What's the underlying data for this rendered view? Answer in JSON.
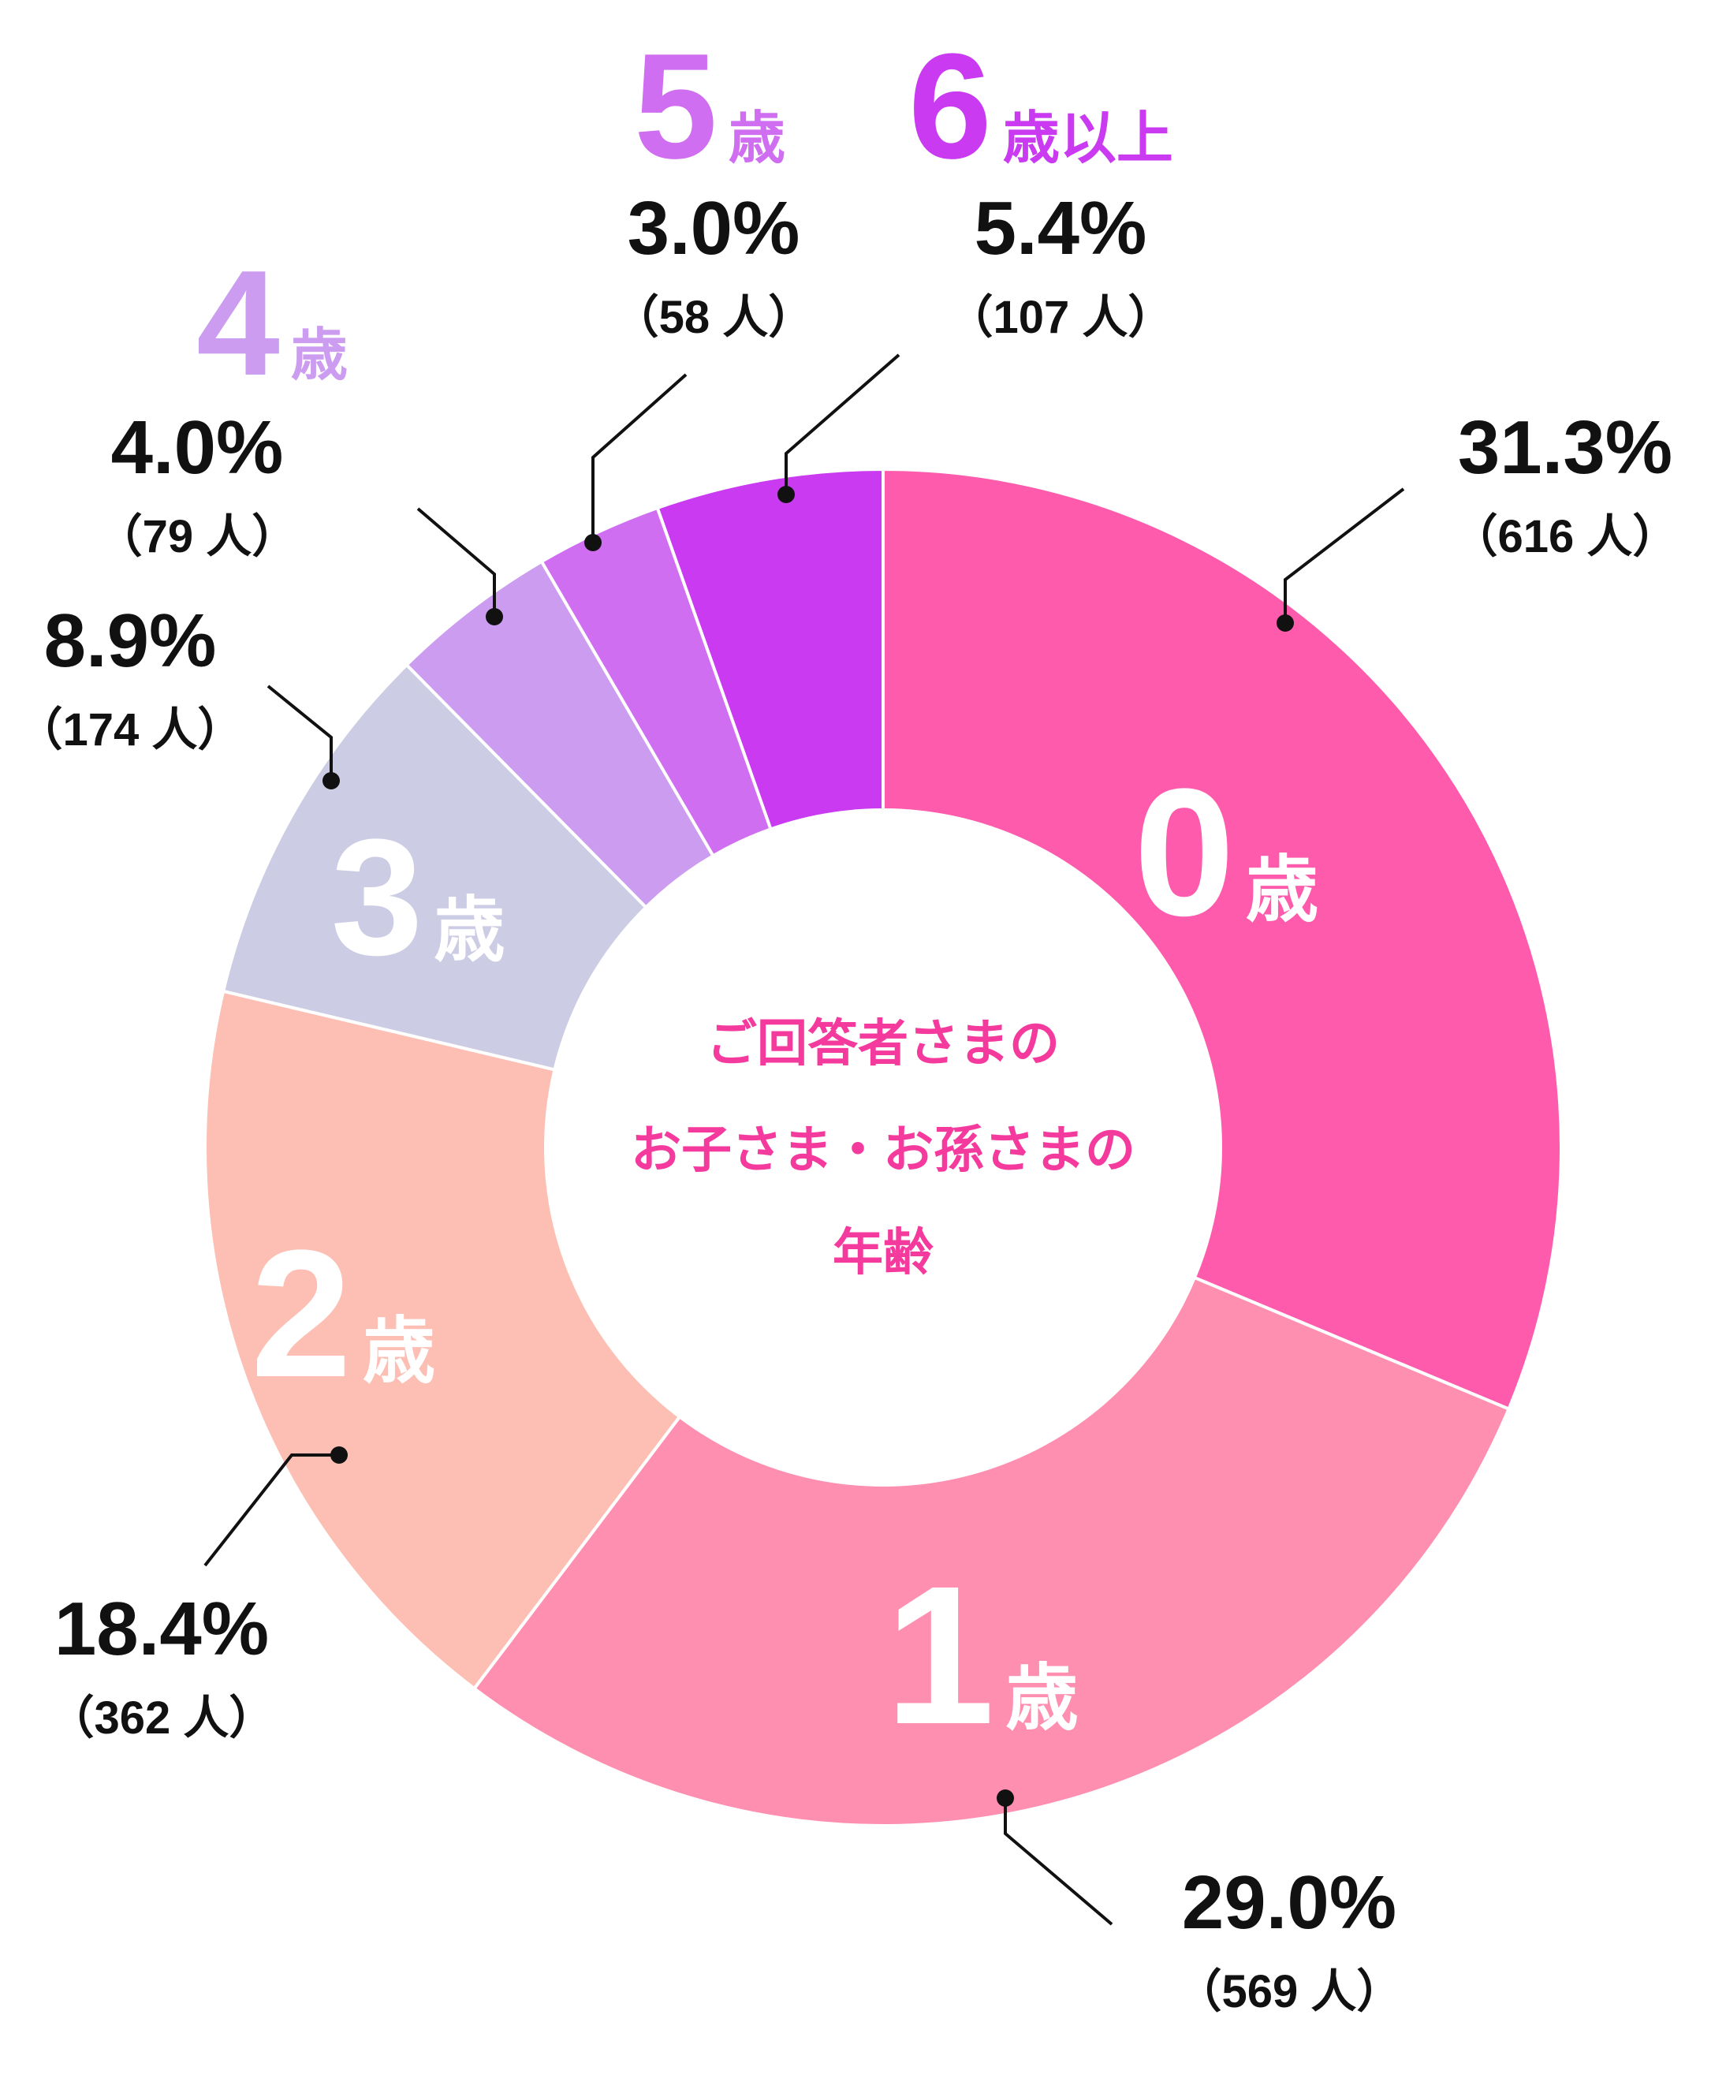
{
  "chart_data": {
    "type": "pie",
    "variant": "donut",
    "title": "",
    "center_label": [
      "ご回答者さまの",
      "お子さま・お孫さまの",
      "年齢"
    ],
    "unit_suffix": "歳",
    "slices": [
      {
        "age": "0",
        "suffix": "歳",
        "percent": 31.3,
        "percent_label": "31.3%",
        "count_label": "（616 人）",
        "color": "#ff5bad"
      },
      {
        "age": "1",
        "suffix": "歳",
        "percent": 29.0,
        "percent_label": "29.0%",
        "count_label": "（569 人）",
        "color": "#ff8fb0"
      },
      {
        "age": "2",
        "suffix": "歳",
        "percent": 18.4,
        "percent_label": "18.4%",
        "count_label": "（362 人）",
        "color": "#fdbfb3"
      },
      {
        "age": "3",
        "suffix": "歳",
        "percent": 8.9,
        "percent_label": "8.9%",
        "count_label": "（174 人）",
        "color": "#cccce4"
      },
      {
        "age": "4",
        "suffix": "歳",
        "percent": 4.0,
        "percent_label": "4.0%",
        "count_label": "（79 人）",
        "color": "#cb9cef"
      },
      {
        "age": "5",
        "suffix": "歳",
        "percent": 3.0,
        "percent_label": "3.0%",
        "count_label": "（58 人）",
        "color": "#d06ef1"
      },
      {
        "age": "6",
        "suffix": "歳以上",
        "percent": 5.4,
        "percent_label": "5.4%",
        "count_label": "（107 人）",
        "color": "#c93af1"
      }
    ],
    "colors": {
      "center_text": "#f53a9e",
      "inner_label": "#ffffff",
      "annotation_text": "#111111",
      "leader_line": "#111111"
    }
  }
}
